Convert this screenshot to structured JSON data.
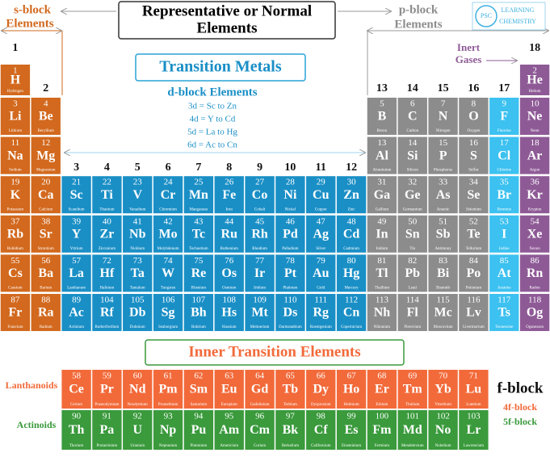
{
  "header": {
    "s_block": [
      "s-block",
      "Elements"
    ],
    "title": [
      "Representative or Normal",
      "Elements"
    ],
    "p_block": [
      "p-block",
      "Elements"
    ],
    "logo": [
      "PSC",
      "LEARNING",
      "CHEMISTRY"
    ]
  },
  "transition": {
    "title": "Transition Metals",
    "d_block": "d-block Elements",
    "lines": [
      "3d = Sc to Zn",
      "4d = Y to Cd",
      "5d = La to Hg",
      "6d = Ac to Cn"
    ]
  },
  "inert_gases": [
    "Inert",
    "Gases"
  ],
  "groups": [
    1,
    2,
    3,
    4,
    5,
    6,
    7,
    8,
    9,
    10,
    11,
    12,
    13,
    14,
    15,
    16,
    17,
    18
  ],
  "inner": {
    "title": "Inner Transition Elements",
    "lanthanoids": "Lanthanoids",
    "actinoids": "Actinoids",
    "f_block": "f-block",
    "f4": "4f-block",
    "f5": "5f-block"
  },
  "elements": [
    [
      1,
      "H",
      "Hydrogen"
    ],
    [
      2,
      "He",
      "Helium"
    ],
    [
      3,
      "Li",
      "Lithium"
    ],
    [
      4,
      "Be",
      "Beryllium"
    ],
    [
      5,
      "B",
      "Boron"
    ],
    [
      6,
      "C",
      "Carbon"
    ],
    [
      7,
      "N",
      "Nitrogen"
    ],
    [
      8,
      "O",
      "Oxygen"
    ],
    [
      9,
      "F",
      "Fluorine"
    ],
    [
      10,
      "Ne",
      "Neon"
    ],
    [
      11,
      "Na",
      "Sodium"
    ],
    [
      12,
      "Mg",
      "Magnesium"
    ],
    [
      13,
      "Al",
      "Aluminium"
    ],
    [
      14,
      "Si",
      "Silicon"
    ],
    [
      15,
      "P",
      "Phosphorus"
    ],
    [
      16,
      "S",
      "Sulfur"
    ],
    [
      17,
      "Cl",
      "Chlorine"
    ],
    [
      18,
      "Ar",
      "Argon"
    ],
    [
      19,
      "K",
      "Potassium"
    ],
    [
      20,
      "Ca",
      "Calcium"
    ],
    [
      21,
      "Sc",
      "Scandium"
    ],
    [
      22,
      "Ti",
      "Titanium"
    ],
    [
      23,
      "V",
      "Vanadium"
    ],
    [
      24,
      "Cr",
      "Chromium"
    ],
    [
      25,
      "Mn",
      "Manganese"
    ],
    [
      26,
      "Fe",
      "Iron"
    ],
    [
      27,
      "Co",
      "Cobalt"
    ],
    [
      28,
      "Ni",
      "Nickel"
    ],
    [
      29,
      "Cu",
      "Copper"
    ],
    [
      30,
      "Zn",
      "Zinc"
    ],
    [
      31,
      "Ga",
      "Gallium"
    ],
    [
      32,
      "Ge",
      "Germanium"
    ],
    [
      33,
      "As",
      "Arsenic"
    ],
    [
      34,
      "Se",
      "Selenium"
    ],
    [
      35,
      "Br",
      "Bromine"
    ],
    [
      36,
      "Kr",
      "Krypton"
    ],
    [
      37,
      "Rb",
      "Rubidium"
    ],
    [
      38,
      "Sr",
      "Strontium"
    ],
    [
      39,
      "Y",
      "Yttrium"
    ],
    [
      40,
      "Zr",
      "Zirconium"
    ],
    [
      41,
      "Nb",
      "Niobium"
    ],
    [
      42,
      "Mo",
      "Molybdenum"
    ],
    [
      43,
      "Tc",
      "Technetium"
    ],
    [
      44,
      "Ru",
      "Ruthenium"
    ],
    [
      45,
      "Rh",
      "Rhodium"
    ],
    [
      46,
      "Pd",
      "Palladium"
    ],
    [
      47,
      "Ag",
      "Silver"
    ],
    [
      48,
      "Cd",
      "Cadmium"
    ],
    [
      49,
      "In",
      "Indium"
    ],
    [
      50,
      "Sn",
      "Tin"
    ],
    [
      51,
      "Sb",
      "Antimony"
    ],
    [
      52,
      "Te",
      "Tellurium"
    ],
    [
      53,
      "I",
      "Iodine"
    ],
    [
      54,
      "Xe",
      "Xenon"
    ],
    [
      55,
      "Cs",
      "Caesium"
    ],
    [
      56,
      "Ba",
      "Barium"
    ],
    [
      57,
      "La",
      "Lanthanum"
    ],
    [
      58,
      "Ce",
      "Cerium"
    ],
    [
      59,
      "Pr",
      "Praseodymium"
    ],
    [
      60,
      "Nd",
      "Neodymium"
    ],
    [
      61,
      "Pm",
      "Promethium"
    ],
    [
      62,
      "Sm",
      "Samarium"
    ],
    [
      63,
      "Eu",
      "Europium"
    ],
    [
      64,
      "Gd",
      "Gadolinium"
    ],
    [
      65,
      "Tb",
      "Terbium"
    ],
    [
      66,
      "Dy",
      "Dysprosium"
    ],
    [
      67,
      "Ho",
      "Holmium"
    ],
    [
      68,
      "Er",
      "Erbium"
    ],
    [
      69,
      "Tm",
      "Thulium"
    ],
    [
      70,
      "Yb",
      "Ytterbium"
    ],
    [
      71,
      "Lu",
      "Lutetium"
    ],
    [
      72,
      "Hf",
      "Hafnium"
    ],
    [
      73,
      "Ta",
      "Tantalum"
    ],
    [
      74,
      "W",
      "Tungsten"
    ],
    [
      75,
      "Re",
      "Rhenium"
    ],
    [
      76,
      "Os",
      "Osmium"
    ],
    [
      77,
      "Ir",
      "Iridium"
    ],
    [
      78,
      "Pt",
      "Platinum"
    ],
    [
      79,
      "Au",
      "Gold"
    ],
    [
      80,
      "Hg",
      "Mercury"
    ],
    [
      81,
      "Tl",
      "Thallium"
    ],
    [
      82,
      "Pb",
      "Lead"
    ],
    [
      83,
      "Bi",
      "Bismuth"
    ],
    [
      84,
      "Po",
      "Polonium"
    ],
    [
      85,
      "At",
      "Astatine"
    ],
    [
      86,
      "Rn",
      "Radon"
    ],
    [
      87,
      "Fr",
      "Francium"
    ],
    [
      88,
      "Ra",
      "Radium"
    ],
    [
      89,
      "Ac",
      "Actinium"
    ],
    [
      90,
      "Th",
      "Thorium"
    ],
    [
      91,
      "Pa",
      "Protactinium"
    ],
    [
      92,
      "U",
      "Uranium"
    ],
    [
      93,
      "Np",
      "Neptunium"
    ],
    [
      94,
      "Pu",
      "Plutonium"
    ],
    [
      95,
      "Am",
      "Americium"
    ],
    [
      96,
      "Cm",
      "Curium"
    ],
    [
      97,
      "Bk",
      "Berkelium"
    ],
    [
      98,
      "Cf",
      "Californium"
    ],
    [
      99,
      "Es",
      "Einsteinium"
    ],
    [
      100,
      "Fm",
      "Fermium"
    ],
    [
      101,
      "Md",
      "Mendelevium"
    ],
    [
      102,
      "No",
      "Nobelium"
    ],
    [
      103,
      "Lr",
      "Lawrencium"
    ],
    [
      104,
      "Rf",
      "Rutherfordium"
    ],
    [
      105,
      "Db",
      "Dubnium"
    ],
    [
      106,
      "Sg",
      "Seaborgium"
    ],
    [
      107,
      "Bh",
      "Bohrium"
    ],
    [
      108,
      "Hs",
      "Hassium"
    ],
    [
      109,
      "Mt",
      "Meitnerium"
    ],
    [
      110,
      "Ds",
      "Darmstadtium"
    ],
    [
      111,
      "Rg",
      "Roentgenium"
    ],
    [
      112,
      "Cn",
      "Copernicium"
    ],
    [
      113,
      "Nh",
      "Nihonium"
    ],
    [
      114,
      "Fl",
      "Flerovium"
    ],
    [
      115,
      "Mc",
      "Moscovium"
    ],
    [
      116,
      "Lv",
      "Livermorium"
    ],
    [
      117,
      "Ts",
      "Tennessine"
    ],
    [
      118,
      "Og",
      "Oganesson"
    ]
  ]
}
